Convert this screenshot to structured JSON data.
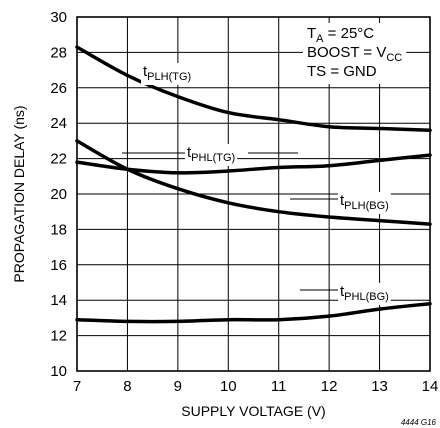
{
  "chart_data": {
    "type": "line",
    "title": "",
    "xlabel": "SUPPLY VOLTAGE (V)",
    "ylabel": "PROPAGATION DELAY (ns)",
    "xlim": [
      7,
      14
    ],
    "ylim": [
      10,
      30
    ],
    "x_ticks": [
      7,
      8,
      9,
      10,
      11,
      12,
      13,
      14
    ],
    "y_ticks": [
      10,
      12,
      14,
      16,
      18,
      20,
      22,
      24,
      26,
      28,
      30
    ],
    "grid": true,
    "conditions": [
      {
        "main": "T",
        "sub": "A",
        "rest": " = 25°C"
      },
      {
        "main": "BOOST = V",
        "sub": "CC",
        "rest": ""
      },
      {
        "main": "TS = GND",
        "sub": "",
        "rest": ""
      }
    ],
    "series": [
      {
        "name_main": "t",
        "name_sub": "PLH(TG)",
        "x": [
          7,
          8,
          9,
          10,
          11,
          12,
          13,
          14
        ],
        "y": [
          28.3,
          26.7,
          25.5,
          24.6,
          24.2,
          23.8,
          23.7,
          23.6
        ]
      },
      {
        "name_main": "t",
        "name_sub": "PHL(TG)",
        "x": [
          7,
          8,
          9,
          10,
          11,
          12,
          13,
          14
        ],
        "y": [
          21.8,
          21.4,
          21.2,
          21.3,
          21.5,
          21.6,
          21.9,
          22.2
        ]
      },
      {
        "name_main": "t",
        "name_sub": "PLH(BG)",
        "x": [
          7,
          8,
          9,
          10,
          11,
          12,
          13,
          14
        ],
        "y": [
          23.0,
          21.4,
          20.3,
          19.5,
          19.0,
          18.7,
          18.5,
          18.3
        ]
      },
      {
        "name_main": "t",
        "name_sub": "PHL(BG)",
        "x": [
          7,
          8,
          9,
          10,
          11,
          12,
          13,
          14
        ],
        "y": [
          12.9,
          12.8,
          12.8,
          12.9,
          12.9,
          13.1,
          13.5,
          13.8
        ]
      }
    ],
    "figure_id": "4444 G16"
  }
}
